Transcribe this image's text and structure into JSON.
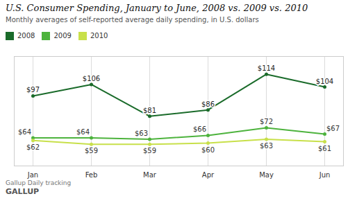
{
  "chart_data": {
    "type": "line",
    "title": "U.S. Consumer Spending, January to June, 2008 vs. 2009 vs. 2010",
    "subtitle": "Monthly averages of self-reported average daily spending, in U.S. dollars",
    "annotations": [
      "Gallup Daily tracking",
      "GALLUP"
    ],
    "categories": [
      "Jan",
      "Feb",
      "Mar",
      "Apr",
      "May",
      "Jun"
    ],
    "series": [
      {
        "name": "2008",
        "color": "#1a6b2a",
        "values": [
          97,
          106,
          81,
          86,
          114,
          104
        ],
        "value_labels": [
          "$97",
          "$106",
          "$81",
          "$86",
          "$114",
          "$104"
        ]
      },
      {
        "name": "2009",
        "color": "#4db33d",
        "values": [
          64,
          64,
          63,
          66,
          72,
          67
        ],
        "value_labels": [
          "$64",
          "$64",
          "$63",
          "$66",
          "$72",
          "$67"
        ]
      },
      {
        "name": "2010",
        "color": "#c8e04a",
        "values": [
          62,
          59,
          59,
          60,
          63,
          61
        ],
        "value_labels": [
          "$62",
          "$59",
          "$59",
          "$60",
          "$63",
          "$61"
        ]
      }
    ],
    "ylim": [
      42,
      128
    ],
    "tick_labels": "x",
    "grid": true,
    "legend": "top",
    "data_labels": true,
    "marker": "circle"
  }
}
